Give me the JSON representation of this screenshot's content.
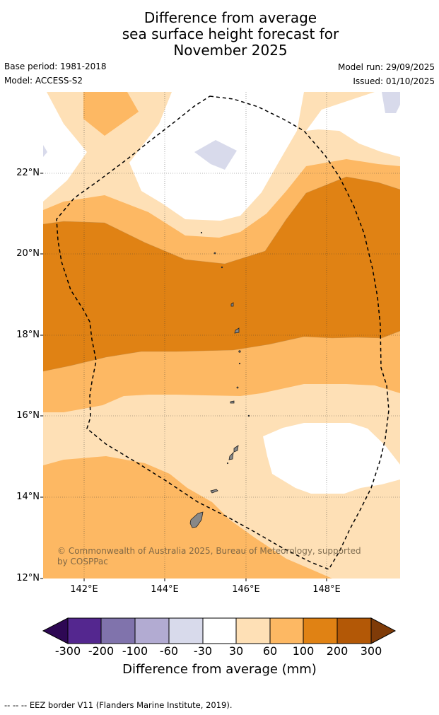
{
  "header": {
    "title_lines": [
      "Difference from average",
      "sea surface height forecast for",
      "November 2025"
    ],
    "base_period": "Base period: 1981-2018",
    "model": "Model: ACCESS-S2",
    "model_run": "Model run: 29/09/2025",
    "issued": "Issued: 01/10/2025"
  },
  "map": {
    "lat_labels": [
      "22°N",
      "20°N",
      "18°N",
      "16°N",
      "14°N",
      "12°N"
    ],
    "lon_labels": [
      "142°E",
      "144°E",
      "146°E",
      "148°E"
    ],
    "copyright": "© Commonwealth of Australia 2025, Bureau of Meteorology, supported by COSPPac"
  },
  "colorbar": {
    "tick_labels": [
      "-300",
      "-200",
      "-100",
      "-60",
      "-30",
      "30",
      "60",
      "100",
      "200",
      "300"
    ],
    "title": "Difference from average (mm)",
    "colors": {
      "lt_minus300": "#2e0854",
      "b1": "#54278f",
      "b2": "#8073ac",
      "b3": "#b2abd2",
      "b4": "#d8daeb",
      "b5": "#ffffff",
      "b6": "#fee0b6",
      "b7": "#fdb863",
      "b8": "#e08214",
      "b9": "#b35806",
      "gt_300": "#7f3b08"
    }
  },
  "footer": {
    "legend_text": "--  --  -- EEZ border V11 (Flanders Marine Institute, 2019)."
  }
}
